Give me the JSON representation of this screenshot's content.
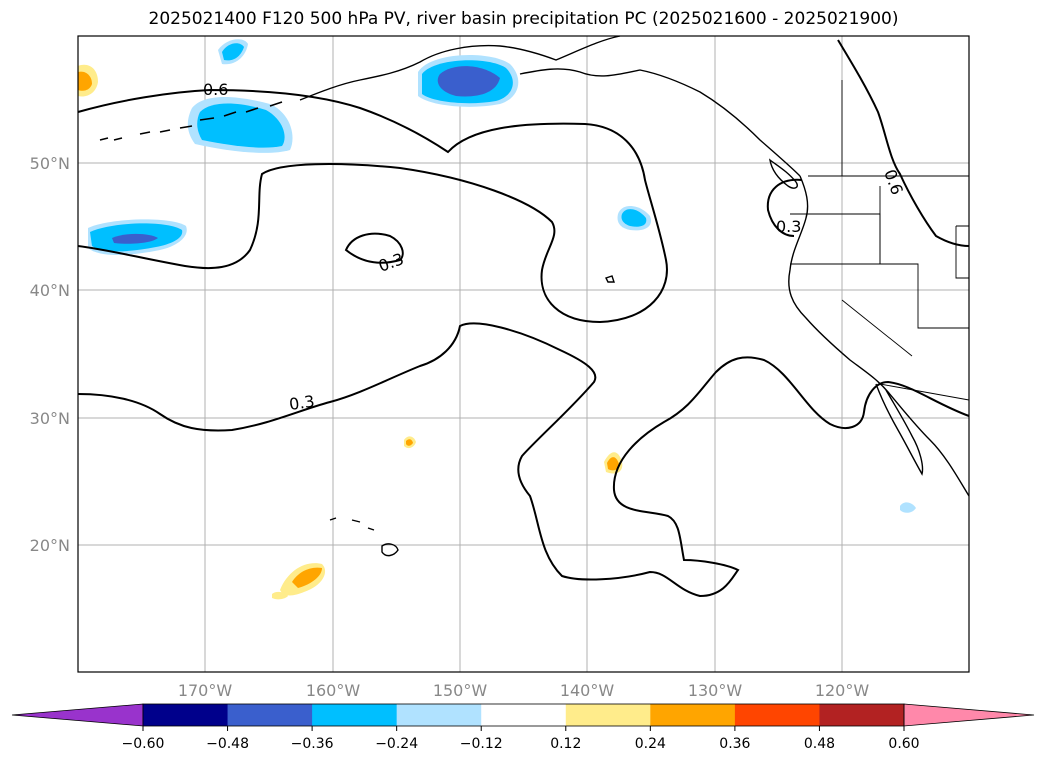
{
  "title": "2025021400 F120 500 hPa PV, river basin precipitation PC (2025021600 - 2025021900)",
  "map": {
    "lat_labels": [
      "50°N",
      "40°N",
      "30°N",
      "20°N"
    ],
    "lon_labels": [
      "170°W",
      "160°W",
      "150°W",
      "140°W",
      "130°W",
      "120°W"
    ],
    "contour_labels": [
      "0.6",
      "0.3",
      "0.3",
      "0.3",
      "0.6"
    ]
  },
  "colorbar": {
    "ticks": [
      "−0.60",
      "−0.48",
      "−0.36",
      "−0.24",
      "−0.12",
      "0.12",
      "0.24",
      "0.36",
      "0.48",
      "0.60"
    ],
    "colors": [
      "#9933cc",
      "#00008b",
      "#3a5fcd",
      "#00bfff",
      "#b0e2ff",
      "#ffffff",
      "#ffec8b",
      "#ffa500",
      "#ff4500",
      "#b22222",
      "#ff88aa"
    ]
  }
}
